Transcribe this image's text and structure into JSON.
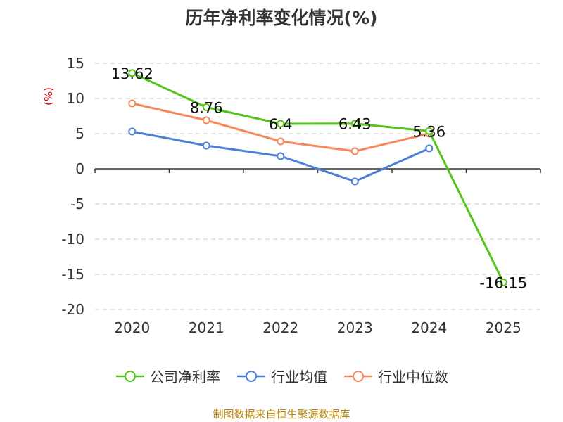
{
  "title": "历年净利率变化情况(%)",
  "source": "制图数据来自恒生聚源数据库",
  "chart_data": {
    "type": "line",
    "title": "历年净利率变化情况(%)",
    "ylabel": "(%)",
    "xlabel": "",
    "categories": [
      "2020",
      "2021",
      "2022",
      "2023",
      "2024",
      "2025"
    ],
    "ylim": [
      -20,
      15
    ],
    "yticks": [
      15,
      10,
      5,
      0,
      -5,
      -10,
      -15,
      -20
    ],
    "grid": true,
    "legend_position": "bottom",
    "series": [
      {
        "name": "公司净利率",
        "color": "#52c41a",
        "values": [
          13.62,
          8.76,
          6.4,
          6.43,
          5.36,
          -16.15
        ],
        "labels": [
          "13.62",
          "8.76",
          "6.4",
          "6.43",
          "5.36",
          "-16.15"
        ]
      },
      {
        "name": "行业均值",
        "color": "#4e7fd8",
        "values": [
          5.3,
          3.3,
          1.8,
          -1.8,
          2.9,
          null
        ]
      },
      {
        "name": "行业中位数",
        "color": "#f5895a",
        "values": [
          9.3,
          6.9,
          3.9,
          2.5,
          5.0,
          null
        ]
      }
    ]
  }
}
